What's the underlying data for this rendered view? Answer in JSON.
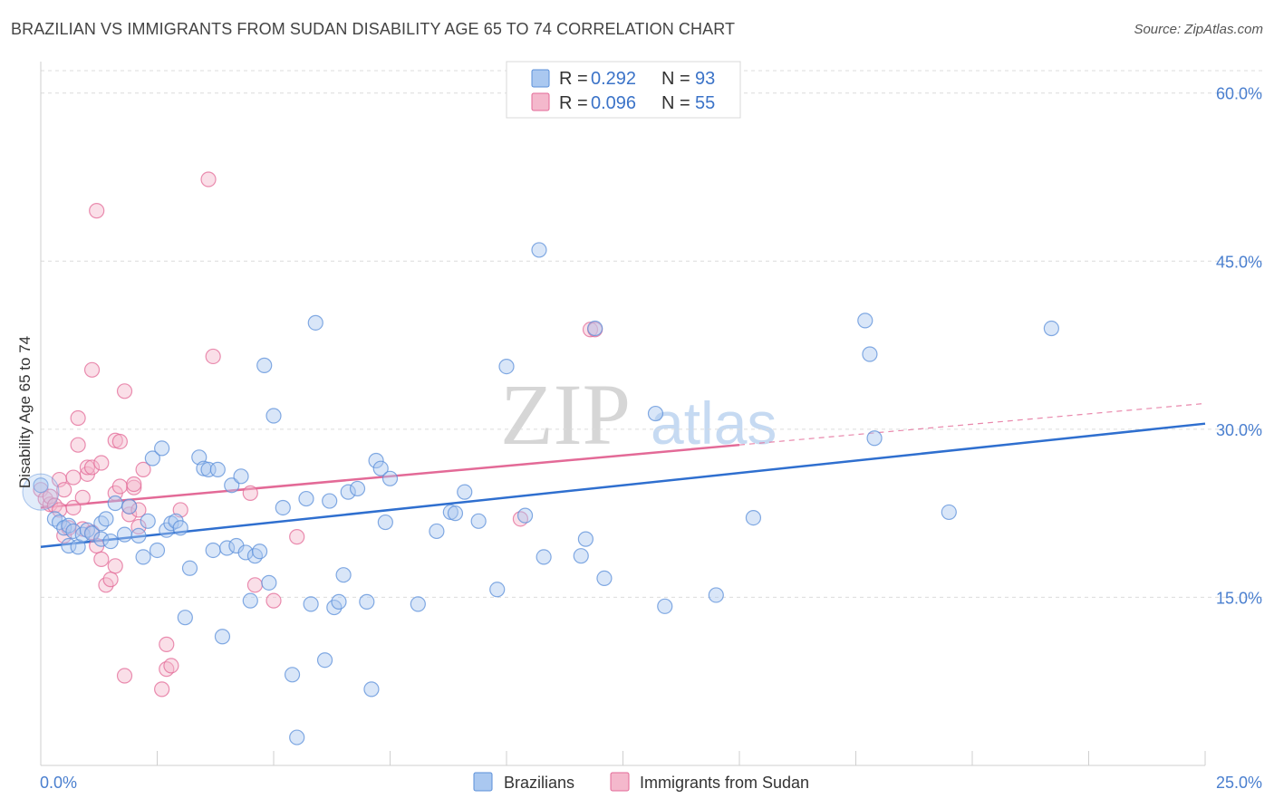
{
  "title": "BRAZILIAN VS IMMIGRANTS FROM SUDAN DISABILITY AGE 65 TO 74 CORRELATION CHART",
  "source": "Source: ZipAtlas.com",
  "watermark": {
    "zip": "ZIP",
    "atlas": "atlas"
  },
  "legend": {
    "series1": {
      "r_label": "R = ",
      "r_value": "0.292",
      "n_label": "N = ",
      "n_value": "93"
    },
    "series2": {
      "r_label": "R = ",
      "r_value": "0.096",
      "n_label": "N = ",
      "n_value": "55"
    }
  },
  "bottom_legend": [
    "Brazilians",
    "Immigrants from Sudan"
  ],
  "colors": {
    "blue": "#5b8fd9",
    "blue_fill": "#aac8f0",
    "pink": "#e36a97",
    "pink_fill": "#f4b8cc"
  },
  "chart_data": {
    "type": "scatter",
    "title": "BRAZILIAN VS IMMIGRANTS FROM SUDAN DISABILITY AGE 65 TO 74 CORRELATION CHART",
    "xlabel": "",
    "ylabel": "Disability Age 65 to 74",
    "xlim": [
      0,
      25
    ],
    "ylim": [
      0,
      62
    ],
    "x_tick_labels": [
      "0.0%",
      "25.0%"
    ],
    "y_ticks": [
      15,
      30,
      45,
      60
    ],
    "y_tick_labels": [
      "15.0%",
      "30.0%",
      "45.0%",
      "60.0%"
    ],
    "series": [
      {
        "name": "Brazilians",
        "trend": {
          "x0": 0,
          "y0": 19.5,
          "x1": 25,
          "y1": 30.5
        },
        "points": [
          [
            0.0,
            25.0
          ],
          [
            0.3,
            22.0
          ],
          [
            0.4,
            21.7
          ],
          [
            0.5,
            21.2
          ],
          [
            0.6,
            21.4
          ],
          [
            0.6,
            19.6
          ],
          [
            0.7,
            20.9
          ],
          [
            0.8,
            19.5
          ],
          [
            0.9,
            20.6
          ],
          [
            1.0,
            21.0
          ],
          [
            1.1,
            20.7
          ],
          [
            1.3,
            20.2
          ],
          [
            1.3,
            21.6
          ],
          [
            1.4,
            22.0
          ],
          [
            1.5,
            20.0
          ],
          [
            1.6,
            23.4
          ],
          [
            1.8,
            20.6
          ],
          [
            1.9,
            23.1
          ],
          [
            2.1,
            20.5
          ],
          [
            2.2,
            18.6
          ],
          [
            2.3,
            21.8
          ],
          [
            2.4,
            27.4
          ],
          [
            2.5,
            19.2
          ],
          [
            2.6,
            28.3
          ],
          [
            2.7,
            21.0
          ],
          [
            2.8,
            21.6
          ],
          [
            2.9,
            21.8
          ],
          [
            3.0,
            21.2
          ],
          [
            3.1,
            13.2
          ],
          [
            3.2,
            17.6
          ],
          [
            3.4,
            27.5
          ],
          [
            3.5,
            26.5
          ],
          [
            3.6,
            26.4
          ],
          [
            3.7,
            19.2
          ],
          [
            3.8,
            26.4
          ],
          [
            3.9,
            11.5
          ],
          [
            4.0,
            19.4
          ],
          [
            4.1,
            25.0
          ],
          [
            4.2,
            19.6
          ],
          [
            4.3,
            25.8
          ],
          [
            4.4,
            19.0
          ],
          [
            4.5,
            14.7
          ],
          [
            4.6,
            18.7
          ],
          [
            4.7,
            19.1
          ],
          [
            4.8,
            35.7
          ],
          [
            4.9,
            16.3
          ],
          [
            5.0,
            31.2
          ],
          [
            5.2,
            23.0
          ],
          [
            5.4,
            8.1
          ],
          [
            5.5,
            2.5
          ],
          [
            5.7,
            23.8
          ],
          [
            5.8,
            14.4
          ],
          [
            5.9,
            39.5
          ],
          [
            6.1,
            9.4
          ],
          [
            6.2,
            23.6
          ],
          [
            6.3,
            14.1
          ],
          [
            6.4,
            14.6
          ],
          [
            6.5,
            17.0
          ],
          [
            6.6,
            24.4
          ],
          [
            6.8,
            24.7
          ],
          [
            7.0,
            14.6
          ],
          [
            7.1,
            6.8
          ],
          [
            7.2,
            27.2
          ],
          [
            7.3,
            26.5
          ],
          [
            7.4,
            21.7
          ],
          [
            7.5,
            25.6
          ],
          [
            8.1,
            14.4
          ],
          [
            8.5,
            20.9
          ],
          [
            8.8,
            22.6
          ],
          [
            8.9,
            22.5
          ],
          [
            9.1,
            24.4
          ],
          [
            9.4,
            21.8
          ],
          [
            9.8,
            15.7
          ],
          [
            10.0,
            35.6
          ],
          [
            10.4,
            22.3
          ],
          [
            10.7,
            46.0
          ],
          [
            10.8,
            18.6
          ],
          [
            11.6,
            18.7
          ],
          [
            11.7,
            20.2
          ],
          [
            11.9,
            39.0
          ],
          [
            12.1,
            16.7
          ],
          [
            13.2,
            31.4
          ],
          [
            13.4,
            14.2
          ],
          [
            14.5,
            15.2
          ],
          [
            15.3,
            22.1
          ],
          [
            17.7,
            39.7
          ],
          [
            17.8,
            36.7
          ],
          [
            17.9,
            29.2
          ],
          [
            19.5,
            22.6
          ],
          [
            21.7,
            39.0
          ]
        ]
      },
      {
        "name": "Immigrants from Sudan",
        "trend": {
          "x0": 0,
          "y0": 23.0,
          "x1": 15.0,
          "y1": 28.6
        },
        "trend_dashed": {
          "x0": 15.0,
          "y0": 28.6,
          "x1": 25,
          "y1": 32.3
        },
        "points": [
          [
            0.0,
            24.6
          ],
          [
            0.1,
            23.8
          ],
          [
            0.2,
            23.3
          ],
          [
            0.2,
            24.0
          ],
          [
            0.3,
            23.2
          ],
          [
            0.4,
            22.8
          ],
          [
            0.4,
            25.5
          ],
          [
            0.5,
            20.5
          ],
          [
            0.5,
            24.6
          ],
          [
            0.6,
            21.2
          ],
          [
            0.7,
            25.7
          ],
          [
            0.7,
            23.0
          ],
          [
            0.8,
            28.6
          ],
          [
            0.8,
            31.0
          ],
          [
            0.9,
            21.1
          ],
          [
            0.9,
            23.9
          ],
          [
            1.0,
            26.0
          ],
          [
            1.0,
            26.6
          ],
          [
            1.1,
            26.6
          ],
          [
            1.1,
            20.8
          ],
          [
            1.1,
            35.3
          ],
          [
            1.2,
            49.5
          ],
          [
            1.2,
            19.6
          ],
          [
            1.3,
            18.4
          ],
          [
            1.3,
            27.0
          ],
          [
            1.4,
            16.1
          ],
          [
            1.5,
            16.6
          ],
          [
            1.6,
            29.0
          ],
          [
            1.6,
            24.3
          ],
          [
            1.6,
            17.8
          ],
          [
            1.7,
            28.9
          ],
          [
            1.7,
            24.9
          ],
          [
            1.8,
            8.0
          ],
          [
            1.8,
            33.4
          ],
          [
            1.9,
            22.4
          ],
          [
            1.9,
            23.1
          ],
          [
            2.0,
            24.8
          ],
          [
            2.0,
            25.1
          ],
          [
            2.1,
            22.8
          ],
          [
            2.1,
            21.3
          ],
          [
            2.2,
            26.4
          ],
          [
            2.6,
            6.8
          ],
          [
            2.7,
            10.8
          ],
          [
            2.7,
            8.6
          ],
          [
            2.8,
            8.9
          ],
          [
            3.0,
            22.8
          ],
          [
            3.6,
            52.3
          ],
          [
            3.7,
            36.5
          ],
          [
            4.5,
            24.3
          ],
          [
            4.6,
            16.1
          ],
          [
            5.0,
            14.7
          ],
          [
            5.5,
            20.4
          ],
          [
            10.3,
            22.0
          ],
          [
            11.8,
            38.9
          ],
          [
            11.9,
            38.9
          ]
        ]
      }
    ]
  }
}
